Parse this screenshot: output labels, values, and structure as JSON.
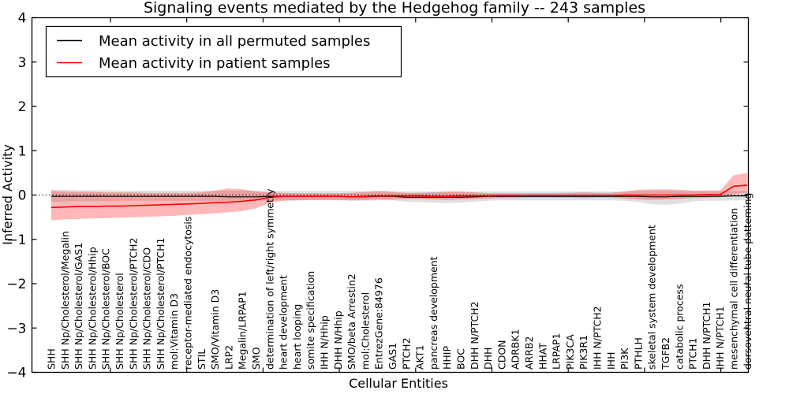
{
  "title": "Signaling events mediated by the Hedgehog family -- 243 samples",
  "legend": {
    "items": [
      {
        "label": "Mean activity in all permuted samples",
        "color": "#000000"
      },
      {
        "label": "Mean activity in patient samples",
        "color": "#ff0000"
      }
    ]
  },
  "chart_data": {
    "type": "line",
    "title": "Signaling events mediated by the Hedgehog family -- 243 samples",
    "xlabel": "Cellular Entities",
    "ylabel": "Inferred Activity",
    "ylim": [
      -4,
      4
    ],
    "yticks": [
      -4,
      -3,
      -2,
      -1,
      0,
      1,
      2,
      3,
      4
    ],
    "grid": false,
    "legend_position": "upper left",
    "reference_line": {
      "y": 0,
      "style": "dotted",
      "color": "#000000"
    },
    "categories": [
      "SHH",
      "SHH Np/Cholesterol/Megalin",
      "SHH Np/Cholesterol/GAS1",
      "SHH Np/Cholesterol/Hhip",
      "SHH Np/Cholesterol/BOC",
      "SHH Np/Cholesterol",
      "SHH Np/Cholesterol/PTCH2",
      "SHH Np/Cholesterol/CDO",
      "SHH Np/Cholesterol/PTCH1",
      "mol:Vitamin D3",
      "receptor-mediated endocytosis",
      "STIL",
      "SMO/Vitamin D3",
      "LRP2",
      "Megalin/LRPAP1",
      "SMO",
      "determination of left/right symmetry",
      "heart development",
      "heart looping",
      "somite specification",
      "IHH N/Hhip",
      "DHH N/Hhip",
      "SMO/beta Arrestin2",
      "mol:Cholesterol",
      "EntrezGene:84976",
      "GAS1",
      "PTCH2",
      "AKT1",
      "pancreas development",
      "HHIP",
      "BOC",
      "DHH N/PTCH2",
      "DHH",
      "CDON",
      "ADRBK1",
      "ARRB2",
      "HHAT",
      "LRPAP1",
      "PIK3CA",
      "PIK3R1",
      "IHH N/PTCH2",
      "IHH",
      "PI3K",
      "PTHLH",
      "skeletal system development",
      "TGFB2",
      "catabolic process",
      "PTCH1",
      "DHH N/PTCH1",
      "IHH N/PTCH1",
      "mesenchymal cell differentiation",
      "dorsoventral neural tube patterning"
    ],
    "series": [
      {
        "name": "Mean activity in all permuted samples",
        "color": "#000000",
        "values": [
          -0.03,
          -0.03,
          -0.03,
          -0.03,
          -0.03,
          -0.03,
          -0.03,
          -0.03,
          -0.03,
          -0.03,
          -0.03,
          -0.03,
          -0.03,
          -0.04,
          -0.04,
          -0.04,
          -0.03,
          -0.03,
          -0.03,
          -0.03,
          -0.03,
          -0.03,
          -0.04,
          -0.04,
          -0.03,
          -0.03,
          -0.05,
          -0.05,
          -0.05,
          -0.05,
          -0.05,
          -0.04,
          -0.03,
          -0.03,
          -0.03,
          -0.03,
          -0.03,
          -0.03,
          -0.03,
          -0.03,
          -0.03,
          -0.03,
          -0.03,
          -0.03,
          -0.04,
          -0.04,
          -0.03,
          -0.03,
          -0.03,
          -0.03,
          -0.02,
          -0.02
        ]
      },
      {
        "name": "Mean activity in patient samples",
        "color": "#ff0000",
        "values": [
          -0.28,
          -0.27,
          -0.26,
          -0.26,
          -0.25,
          -0.25,
          -0.24,
          -0.23,
          -0.22,
          -0.21,
          -0.2,
          -0.19,
          -0.17,
          -0.16,
          -0.14,
          -0.11,
          -0.05,
          -0.03,
          -0.03,
          -0.03,
          -0.03,
          -0.03,
          -0.04,
          -0.03,
          -0.02,
          -0.02,
          -0.02,
          -0.02,
          -0.03,
          -0.03,
          -0.02,
          -0.02,
          -0.02,
          -0.01,
          -0.01,
          -0.01,
          -0.01,
          -0.01,
          -0.01,
          -0.01,
          -0.01,
          -0.01,
          0.0,
          0.0,
          0.0,
          0.0,
          0.0,
          0.0,
          0.01,
          0.01,
          0.2,
          0.22
        ]
      }
    ],
    "bands": [
      {
        "name": "permuted samples std band",
        "color": "rgba(0,0,0,0.12)",
        "upper": [
          0.12,
          0.12,
          0.11,
          0.11,
          0.11,
          0.1,
          0.1,
          0.1,
          0.1,
          0.1,
          0.1,
          0.1,
          0.1,
          0.1,
          0.1,
          0.1,
          0.09,
          0.09,
          0.09,
          0.09,
          0.09,
          0.09,
          0.09,
          0.09,
          0.09,
          0.09,
          0.08,
          0.08,
          0.08,
          0.08,
          0.08,
          0.08,
          0.08,
          0.08,
          0.08,
          0.08,
          0.08,
          0.08,
          0.08,
          0.08,
          0.08,
          0.08,
          0.08,
          0.09,
          0.1,
          0.1,
          0.09,
          0.09,
          0.09,
          0.09,
          0.09,
          0.1
        ],
        "lower": [
          -0.15,
          -0.15,
          -0.14,
          -0.14,
          -0.14,
          -0.13,
          -0.13,
          -0.13,
          -0.13,
          -0.13,
          -0.13,
          -0.13,
          -0.13,
          -0.13,
          -0.13,
          -0.13,
          -0.12,
          -0.12,
          -0.12,
          -0.12,
          -0.12,
          -0.12,
          -0.13,
          -0.13,
          -0.12,
          -0.12,
          -0.15,
          -0.16,
          -0.17,
          -0.18,
          -0.17,
          -0.15,
          -0.13,
          -0.12,
          -0.12,
          -0.12,
          -0.12,
          -0.12,
          -0.12,
          -0.12,
          -0.12,
          -0.12,
          -0.13,
          -0.16,
          -0.21,
          -0.22,
          -0.2,
          -0.14,
          -0.13,
          -0.13,
          -0.12,
          -0.12
        ]
      },
      {
        "name": "patient samples std band",
        "color": "rgba(255,0,0,0.28)",
        "upper": [
          0.09,
          0.08,
          0.07,
          0.07,
          0.06,
          0.06,
          0.06,
          0.05,
          0.05,
          0.05,
          0.05,
          0.06,
          0.1,
          0.15,
          0.13,
          0.08,
          0.06,
          0.05,
          0.04,
          0.04,
          0.04,
          0.04,
          0.05,
          0.07,
          0.09,
          0.07,
          0.05,
          0.05,
          0.06,
          0.08,
          0.08,
          0.06,
          0.04,
          0.04,
          0.04,
          0.04,
          0.04,
          0.04,
          0.05,
          0.06,
          0.05,
          0.05,
          0.08,
          0.12,
          0.13,
          0.13,
          0.12,
          0.1,
          0.1,
          0.1,
          0.45,
          0.5
        ],
        "lower": [
          -0.57,
          -0.55,
          -0.54,
          -0.53,
          -0.52,
          -0.51,
          -0.5,
          -0.49,
          -0.48,
          -0.47,
          -0.45,
          -0.43,
          -0.41,
          -0.39,
          -0.36,
          -0.3,
          -0.18,
          -0.13,
          -0.12,
          -0.11,
          -0.11,
          -0.11,
          -0.12,
          -0.11,
          -0.1,
          -0.1,
          -0.09,
          -0.09,
          -0.1,
          -0.11,
          -0.1,
          -0.09,
          -0.08,
          -0.07,
          -0.07,
          -0.06,
          -0.06,
          -0.06,
          -0.06,
          -0.07,
          -0.06,
          -0.06,
          -0.08,
          -0.1,
          -0.11,
          -0.1,
          -0.09,
          -0.07,
          -0.06,
          -0.05,
          0.02,
          0.05
        ]
      }
    ]
  }
}
